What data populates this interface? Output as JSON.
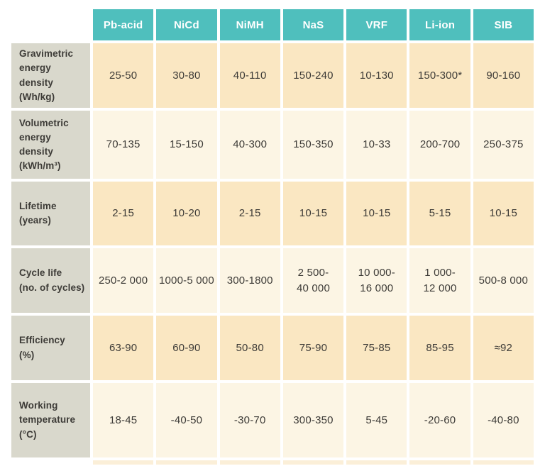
{
  "table": {
    "columns": [
      "Pb-acid",
      "NiCd",
      "NiMH",
      "NaS",
      "VRF",
      "Li-ion",
      "SIB"
    ],
    "rows": [
      {
        "label": "Gravimetric\nenergy\ndensity\n(Wh/kg)",
        "values": [
          "25-50",
          "30-80",
          "40-110",
          "150-240",
          "10-130",
          "150-300*",
          "90-160"
        ]
      },
      {
        "label": "Volumetric\nenergy\ndensity\n(kWh/m³)",
        "values": [
          "70-135",
          "15-150",
          "40-300",
          "150-350",
          "10-33",
          "200-700",
          "250-375"
        ]
      },
      {
        "label": "Lifetime\n(years)",
        "values": [
          "2-15",
          "10-20",
          "2-15",
          "10-15",
          "10-15",
          "5-15",
          "10-15"
        ]
      },
      {
        "label": "Cycle life\n(no. of cycles)",
        "values": [
          "250-2 000",
          "1000-5 000",
          "300-1800",
          "2 500-\n40 000",
          "10 000-\n16 000",
          "1 000-\n12 000",
          "500-8 000"
        ]
      },
      {
        "label": "Efficiency\n(%)",
        "values": [
          "63-90",
          "60-90",
          "50-80",
          "75-90",
          "75-85",
          "85-95",
          "≈92"
        ]
      },
      {
        "label": "Working\ntemperature\n(°C)",
        "values": [
          "18-45",
          "-40-50",
          "-30-70",
          "300-350",
          "5-45",
          "-20-60",
          "-40-80"
        ]
      }
    ],
    "colors": {
      "header_bg": "#4FBFBD",
      "header_text": "#FFFFFF",
      "row_shade_dark": "#FAE7C2",
      "row_shade_light": "#FCF5E4",
      "label_bg": "#D9D8CC",
      "text": "#3D3B37"
    }
  }
}
